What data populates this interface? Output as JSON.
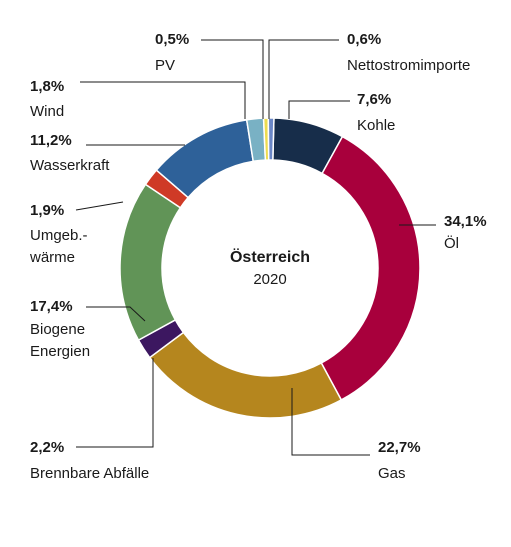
{
  "chart_data": {
    "type": "pie",
    "title": "Österreich",
    "subtitle": "2020",
    "slices": [
      {
        "label": "Kohle",
        "value": 7.6,
        "value_label": "7,6%",
        "color": "#172d4a"
      },
      {
        "label": "Öl",
        "value": 34.1,
        "value_label": "34,1%",
        "color": "#a8003c"
      },
      {
        "label": "Gas",
        "value": 22.7,
        "value_label": "22,7%",
        "color": "#b5861e"
      },
      {
        "label": "Brennbare Abfälle",
        "value": 2.2,
        "value_label": "2,2%",
        "color": "#3c1760"
      },
      {
        "label": "Biogene Energien",
        "value": 17.4,
        "value_label": "17,4%",
        "color": "#619457"
      },
      {
        "label": "Umgeb.-wärme",
        "value": 1.9,
        "value_label": "1,9%",
        "color": "#cf3a26"
      },
      {
        "label": "Wasserkraft",
        "value": 11.2,
        "value_label": "11,2%",
        "color": "#2e6199"
      },
      {
        "label": "Wind",
        "value": 1.8,
        "value_label": "1,8%",
        "color": "#79b1c4"
      },
      {
        "label": "PV",
        "value": 0.5,
        "value_label": "0,5%",
        "color": "#eddc50"
      },
      {
        "label": "Nettostromimporte",
        "value": 0.6,
        "value_label": "0,6%",
        "color": "#6b87c7"
      }
    ]
  }
}
